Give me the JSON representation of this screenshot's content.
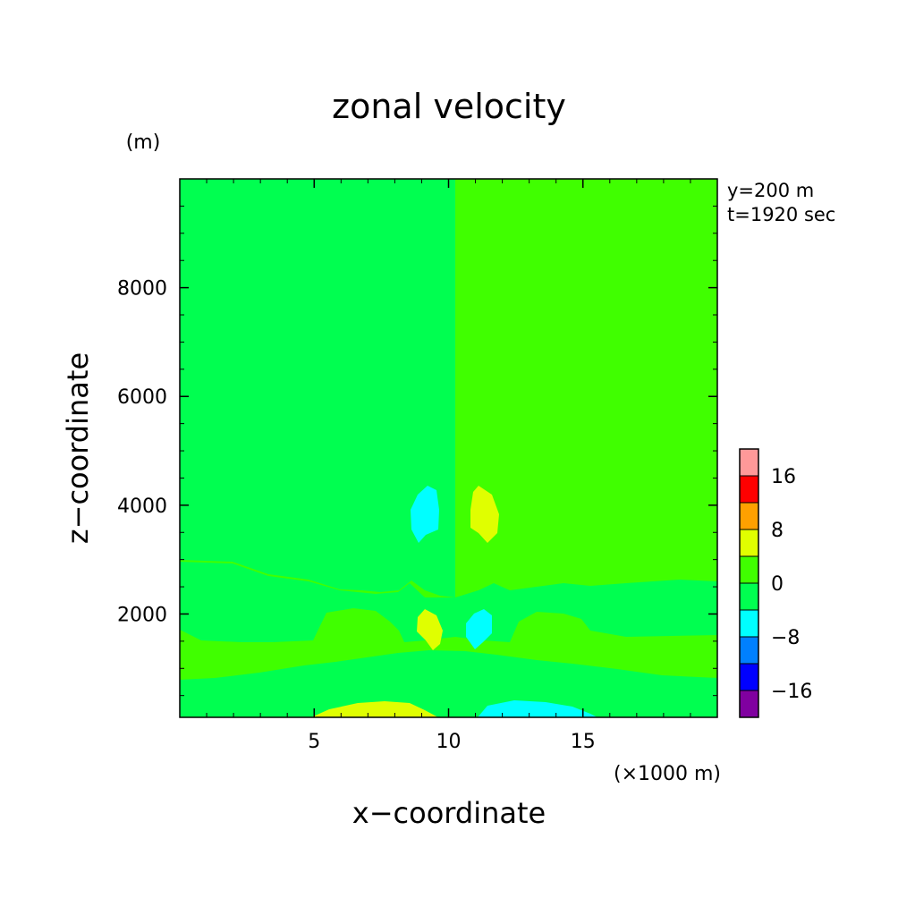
{
  "chart_data": {
    "type": "heatmap",
    "title": "zonal velocity",
    "xlabel": "x−coordinate",
    "ylabel": "z−coordinate",
    "xunit": "(×1000 m)",
    "yunit": "(m)",
    "annotations": [
      "y=200 m",
      "t=1920 sec"
    ],
    "xlim": [
      0,
      20
    ],
    "ylim": [
      100,
      10000
    ],
    "xticks": [
      5,
      10,
      15
    ],
    "xtick_labels": [
      "5",
      "10",
      "15"
    ],
    "yticks": [
      2000,
      4000,
      6000,
      8000
    ],
    "ytick_labels": [
      "2000",
      "4000",
      "6000",
      "8000"
    ],
    "grid": false,
    "colorbar": {
      "position": "right",
      "levels": [
        -20,
        -16,
        -12,
        -8,
        -4,
        0,
        4,
        8,
        12,
        16,
        20
      ],
      "tick_labels": [
        "−16",
        "−8",
        "0",
        "8",
        "16"
      ],
      "tick_values": [
        -16,
        -8,
        0,
        8,
        16
      ],
      "colors": [
        "#8000a0",
        "#0000ff",
        "#0080ff",
        "#00ffff",
        "#00ff50",
        "#40ff00",
        "#e0ff00",
        "#ffa000",
        "#ff0000",
        "#ff9999"
      ]
    },
    "regions": [
      {
        "level": "0 to 4",
        "color": "#40ff00",
        "x": [
          0,
          20
        ],
        "z": [
          100,
          10000
        ],
        "note": "background"
      },
      {
        "level": "-4 to 0",
        "color": "#00ff50",
        "x": [
          0,
          10.2
        ],
        "z": [
          2950,
          10000
        ],
        "note": "upper left half"
      },
      {
        "level": "-4 to 0",
        "color": "#00ff50",
        "x": [
          0,
          20
        ],
        "z": [
          800,
          2400
        ],
        "note": "lower band"
      },
      {
        "level": "4 to 8",
        "color": "#e0ff00",
        "x": [
          4.8,
          9.8
        ],
        "z": [
          100,
          400
        ]
      },
      {
        "level": "-8 to -4",
        "color": "#00ffff",
        "x": [
          10.6,
          15.6
        ],
        "z": [
          100,
          400
        ]
      },
      {
        "level": "-8 to -4",
        "color": "#00ffff",
        "x": [
          8.6,
          9.6
        ],
        "z": [
          3250,
          4300
        ]
      },
      {
        "level": "4 to 8",
        "color": "#e0ff00",
        "x": [
          10.6,
          11.6
        ],
        "z": [
          3250,
          4300
        ]
      },
      {
        "level": "4 to 8",
        "color": "#e0ff00",
        "x": [
          8.9,
          9.9
        ],
        "z": [
          1250,
          2100
        ]
      },
      {
        "level": "-8 to -4",
        "color": "#00ffff",
        "x": [
          10.4,
          11.4
        ],
        "z": [
          1250,
          2100
        ]
      }
    ]
  }
}
